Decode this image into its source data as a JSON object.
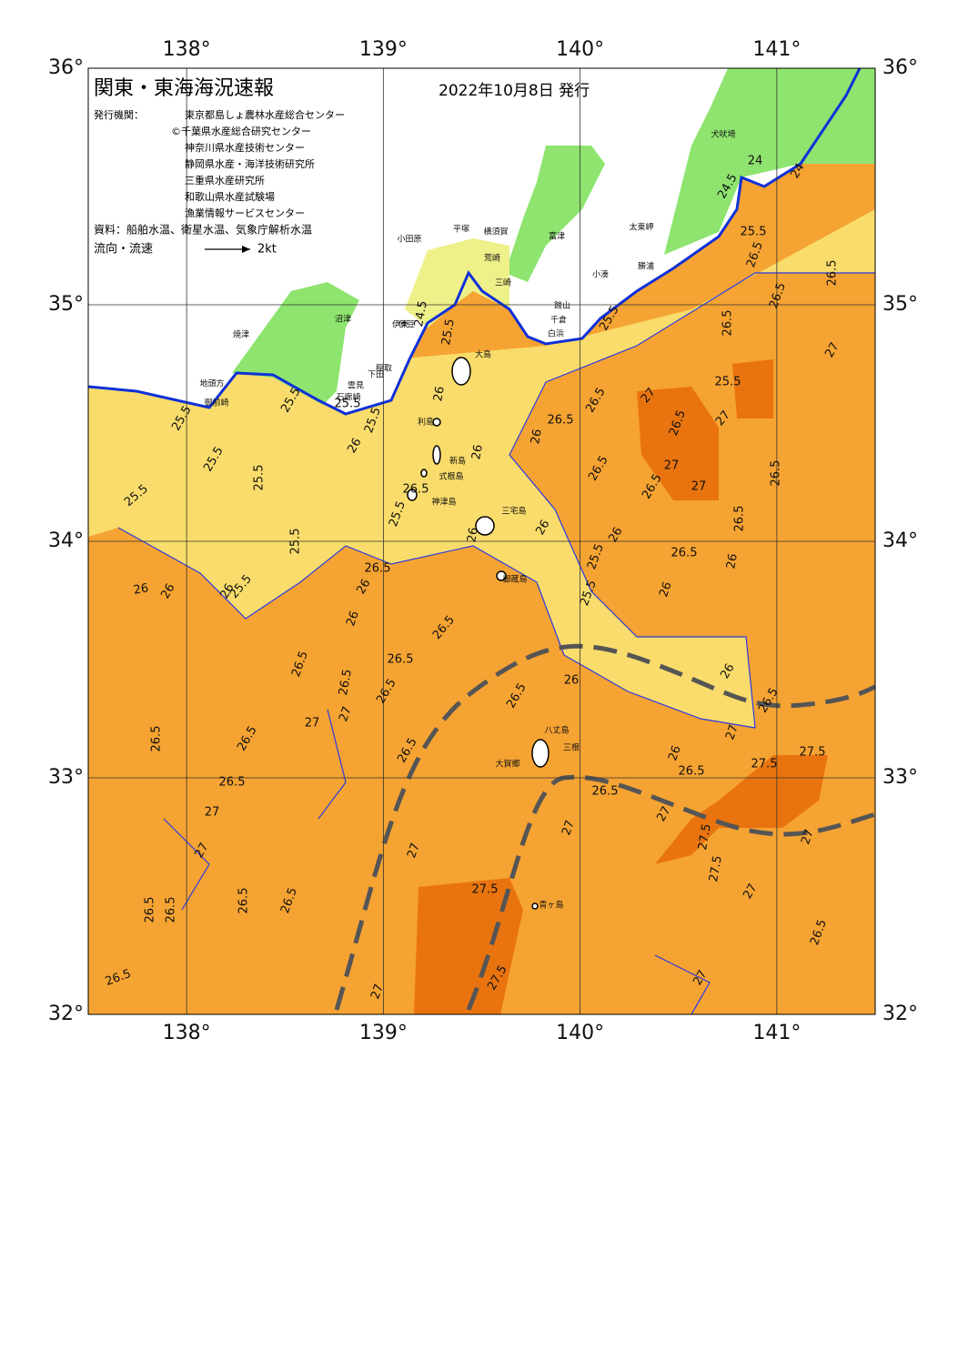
{
  "map": {
    "title": "関東・東海海況速報",
    "date": "2022年10月8日 発行",
    "issuers_label": "発行機関：",
    "issuers": [
      "東京都島しょ農林水産総合センター",
      "©千葉県水産総合研究センター",
      "神奈川県水産技術センター",
      "静岡県水産・海洋技術研究所",
      "三重県水産研究所",
      "和歌山県水産試験場",
      "漁業情報サービスセンター"
    ],
    "source": "資料：船舶水温、衛星水温、気象庁解析水温",
    "legend_label": "流向・流速",
    "legend_scale": "2kt",
    "lon_range": [
      137.5,
      141.5
    ],
    "lat_range": [
      32,
      36
    ],
    "lon_ticks": [
      {
        "value": 138,
        "label": "138°"
      },
      {
        "value": 139,
        "label": "139°"
      },
      {
        "value": 140,
        "label": "140°"
      },
      {
        "value": 141,
        "label": "141°"
      }
    ],
    "lat_ticks": [
      {
        "value": 36,
        "label": "36°"
      },
      {
        "value": 35,
        "label": "35°"
      },
      {
        "value": 34,
        "label": "34°"
      },
      {
        "value": 33,
        "label": "33°"
      },
      {
        "value": 32,
        "label": "32°"
      }
    ],
    "contour_labels": [
      "25.5",
      "25.5",
      "25.5",
      "25.5",
      "25.5",
      "25.5",
      "25.5",
      "26",
      "26",
      "26",
      "26.5",
      "26",
      "26",
      "26.5",
      "26.5",
      "26.5",
      "26.5",
      "26.5",
      "27",
      "27",
      "26.5",
      "26.5",
      "26.5",
      "26.5",
      "27",
      "27",
      "26.5",
      "26.5",
      "26.5",
      "26.5",
      "26.5",
      "27",
      "27.5",
      "27.5",
      "27",
      "26.5",
      "26",
      "26.5",
      "27",
      "27",
      "27.5",
      "27.5",
      "27",
      "27.5",
      "27.5",
      "27",
      "26.5",
      "27",
      "26",
      "26.5",
      "26",
      "27",
      "26.5",
      "26.5",
      "26.5",
      "26",
      "26",
      "26",
      "25.5",
      "25.5",
      "26.5",
      "27",
      "27",
      "26.5",
      "26.5",
      "27",
      "27",
      "26.5",
      "26.5",
      "26.5",
      "26.5",
      "26.5",
      "26.5",
      "27",
      "26",
      "26",
      "26.5",
      "26",
      "26",
      "25.5",
      "24.5",
      "24.5",
      "24",
      "24",
      "25.5",
      "25.5",
      "25.5",
      "25.5",
      "25.5",
      "26.5",
      "26",
      "26",
      "25.5"
    ],
    "places": [
      "大島",
      "利島",
      "新島",
      "式根島",
      "神津島",
      "三宅島",
      "御蔵島",
      "八丈島",
      "三根",
      "大賀郷",
      "青ヶ島",
      "小田原",
      "平塚",
      "横須賀",
      "富津",
      "館山",
      "千倉",
      "犬吠埼",
      "太東岬",
      "勝浦",
      "小湊",
      "伊東",
      "稲取",
      "下田",
      "石廊崎",
      "沼津",
      "焼津",
      "御前崎",
      "地頭方",
      "荒崎",
      "三崎",
      "雲見",
      "伊豆",
      "白浜"
    ]
  }
}
